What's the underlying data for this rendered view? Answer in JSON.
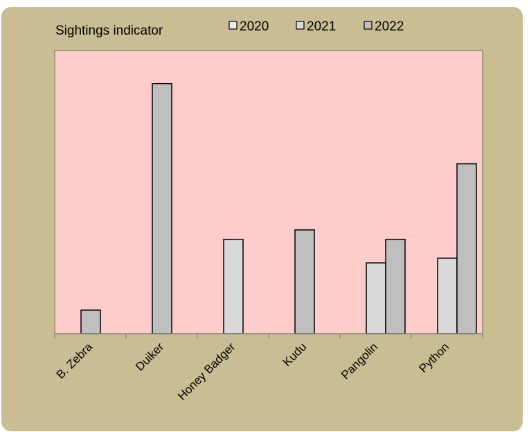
{
  "chart_data": {
    "type": "bar",
    "title": "Sightings indicator",
    "xlabel": "",
    "ylabel": "",
    "categories": [
      "B. Zebra",
      "Duiker",
      "Honey Badger",
      "Kudu",
      "Pangolin",
      "Python"
    ],
    "series": [
      {
        "name": "2020",
        "values": [
          0,
          0,
          0,
          0,
          0,
          0
        ],
        "color": "#ebebeb"
      },
      {
        "name": "2021",
        "values": [
          0,
          0,
          40,
          0,
          30,
          32
        ],
        "color": "#d9d9d9"
      },
      {
        "name": "2022",
        "values": [
          10,
          106,
          0,
          44,
          40,
          72
        ],
        "color": "#bfbfbf"
      }
    ],
    "ylim": [
      0,
      120
    ],
    "grid": false,
    "legend": "top",
    "plot_background": "#ffcccc",
    "frame_background": "#c9bd93"
  }
}
